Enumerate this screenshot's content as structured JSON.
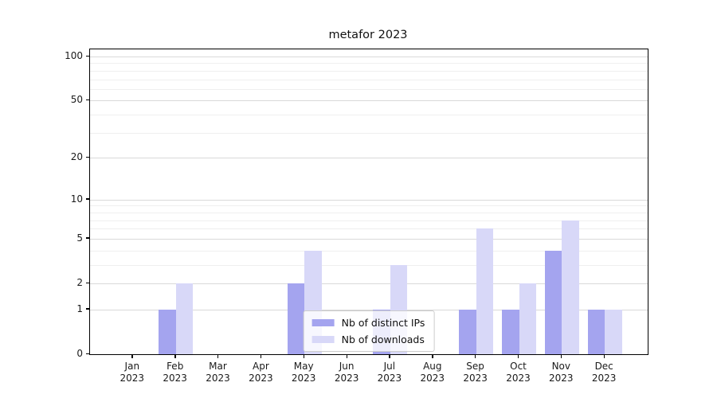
{
  "chart_data": {
    "type": "bar",
    "title": "metafor 2023",
    "categories": [
      "Jan 2023",
      "Feb 2023",
      "Mar 2023",
      "Apr 2023",
      "May 2023",
      "Jun 2023",
      "Jul 2023",
      "Aug 2023",
      "Sep 2023",
      "Oct 2023",
      "Nov 2023",
      "Dec 2023"
    ],
    "x_tick_lines": [
      [
        "Jan",
        "2023"
      ],
      [
        "Feb",
        "2023"
      ],
      [
        "Mar",
        "2023"
      ],
      [
        "Apr",
        "2023"
      ],
      [
        "May",
        "2023"
      ],
      [
        "Jun",
        "2023"
      ],
      [
        "Jul",
        "2023"
      ],
      [
        "Aug",
        "2023"
      ],
      [
        "Sep",
        "2023"
      ],
      [
        "Oct",
        "2023"
      ],
      [
        "Nov",
        "2023"
      ],
      [
        "Dec",
        "2023"
      ]
    ],
    "series": [
      {
        "name": "Nb of distinct IPs",
        "color": "#a4a4ef",
        "values": [
          0,
          1,
          0,
          0,
          2,
          0,
          1,
          0,
          1,
          1,
          4,
          1
        ]
      },
      {
        "name": "Nb of downloads",
        "color": "#d8d8f8",
        "values": [
          0,
          2,
          0,
          0,
          4,
          0,
          3,
          0,
          6,
          2,
          7,
          1
        ]
      }
    ],
    "xlabel": "",
    "ylabel": "",
    "y_scale": "log1p",
    "ylim": [
      0,
      112
    ],
    "y_ticks": [
      0,
      1,
      2,
      5,
      10,
      20,
      50,
      100
    ],
    "y_minor_gridlines": [
      3,
      4,
      6,
      7,
      8,
      9,
      30,
      40,
      60,
      70,
      80,
      90
    ],
    "grid": true,
    "legend_position": "lower center",
    "colors": {
      "grid_major": "#d9d9d9",
      "grid_minor": "#efefef",
      "spine": "#000000",
      "text": "#1a1a1a",
      "background": "#ffffff"
    }
  }
}
